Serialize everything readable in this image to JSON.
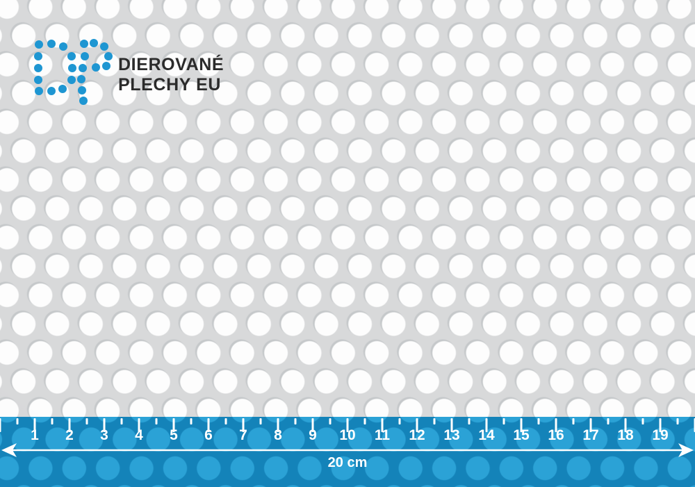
{
  "brand": {
    "mark": "DP",
    "name_line1": "DIEROVANÉ",
    "name_line2": "PLECHY EU",
    "logo_blue": "#1e96d2",
    "text_color": "#2b2b2b"
  },
  "sheet": {
    "type": "perforated-metal-round-holes-staggered",
    "sheet_color": "#d8d9da",
    "hole_color": "#fdfdfd"
  },
  "ruler": {
    "unit_numbers": [
      "1",
      "2",
      "3",
      "4",
      "5",
      "6",
      "7",
      "8",
      "9",
      "10",
      "11",
      "12",
      "13",
      "14",
      "15",
      "16",
      "17",
      "18",
      "19"
    ],
    "total_label": "20 cm",
    "band_dark": "#1483b9",
    "band_light": "#2ba2d6",
    "tick_color": "#ffffff"
  }
}
